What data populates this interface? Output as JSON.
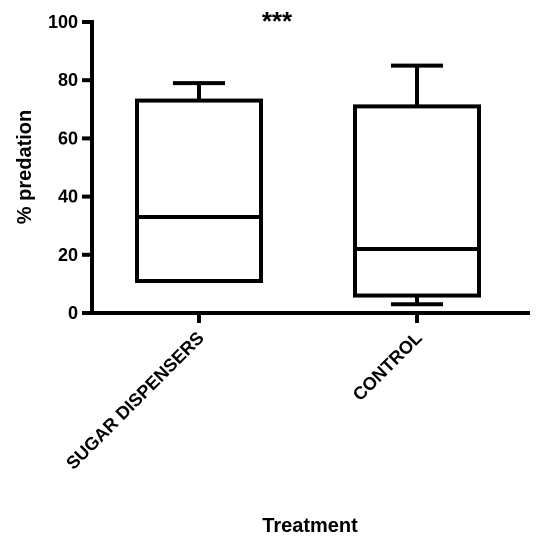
{
  "chart_data": {
    "type": "boxplot",
    "title": "",
    "xlabel": "Treatment",
    "ylabel": "% predation",
    "ylim": [
      0,
      100
    ],
    "yticks": [
      0,
      20,
      40,
      60,
      80,
      100
    ],
    "grid": false,
    "annotation": "***",
    "categories": [
      "SUGAR DISPENSERS",
      "CONTROL"
    ],
    "boxes": [
      {
        "category": "SUGAR DISPENSERS",
        "min": 11,
        "q1": 11,
        "median": 33,
        "q3": 73,
        "max": 79
      },
      {
        "category": "CONTROL",
        "min": 3,
        "q1": 6,
        "median": 22,
        "q3": 71,
        "max": 85
      }
    ],
    "colors": {
      "stroke": "#000000",
      "fill": "#ffffff"
    }
  }
}
